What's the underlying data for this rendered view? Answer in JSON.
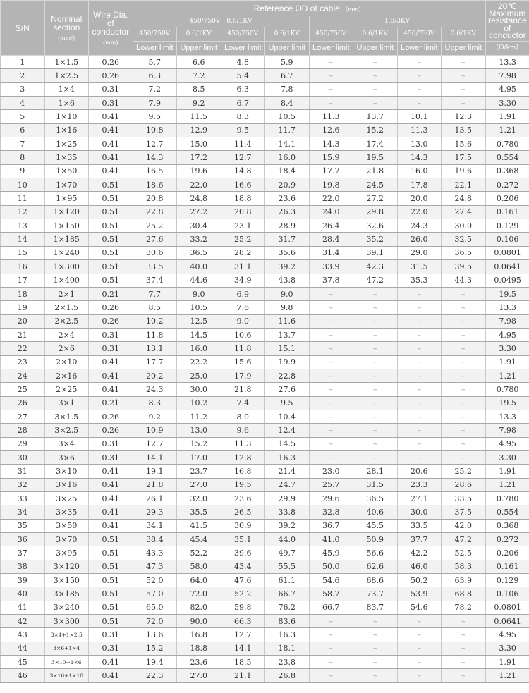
{
  "header": {
    "sn": "S/N",
    "nominal": "Nominal section",
    "nominal_unit": "（mm²）",
    "wire": "Wire Dia. of conductor",
    "wire_unit": "(mm)",
    "ref_od": "Reference OD of cable",
    "ref_od_unit": "（mm）",
    "group_a": "450/750V　0.6/1KV",
    "group_b": "1.8/3KV",
    "sub": [
      "450/750V",
      "0.6/1KV",
      "450/750V",
      "0.6/1KV",
      "450/750V",
      "0.6/1KV",
      "450/750V",
      "0.6/1KV"
    ],
    "limits": [
      "Lower limit",
      "Upper limit",
      "Lower limit",
      "Upper limit",
      "Lower limit",
      "Upper limit",
      "Lower limit",
      "Upper limit"
    ],
    "resistance": "20℃ Maximum resistance of conductor",
    "resistance_unit": "（Ω/km）"
  },
  "rows": [
    [
      "1",
      "1×1.5",
      "0.26",
      "5.7",
      "6.6",
      "4.8",
      "5.9",
      "–",
      "–",
      "–",
      "–",
      "13.3"
    ],
    [
      "2",
      "1×2.5",
      "0.26",
      "6.3",
      "7.2",
      "5.4",
      "6.7",
      "–",
      "–",
      "–",
      "–",
      "7.98"
    ],
    [
      "3",
      "1×4",
      "0.31",
      "7.2",
      "8.5",
      "6.3",
      "7.8",
      "–",
      "–",
      "–",
      "–",
      "4.95"
    ],
    [
      "4",
      "1×6",
      "0.31",
      "7.9",
      "9.2",
      "6.7",
      "8.4",
      "–",
      "–",
      "–",
      "–",
      "3.30"
    ],
    [
      "5",
      "1×10",
      "0.41",
      "9.5",
      "11.5",
      "8.3",
      "10.5",
      "11.3",
      "13.7",
      "10.1",
      "12.3",
      "1.91"
    ],
    [
      "6",
      "1×16",
      "0.41",
      "10.8",
      "12.9",
      "9.5",
      "11.7",
      "12.6",
      "15.2",
      "11.3",
      "13.5",
      "1.21"
    ],
    [
      "7",
      "1×25",
      "0.41",
      "12.7",
      "15.0",
      "11.4",
      "14.1",
      "14.3",
      "17.4",
      "13.0",
      "15.6",
      "0.780"
    ],
    [
      "8",
      "1×35",
      "0.41",
      "14.3",
      "17.2",
      "12.7",
      "16.0",
      "15.9",
      "19.5",
      "14.3",
      "17.5",
      "0.554"
    ],
    [
      "9",
      "1×50",
      "0.41",
      "16.5",
      "19.6",
      "14.8",
      "18.4",
      "17.7",
      "21.8",
      "16.0",
      "19.6",
      "0.368"
    ],
    [
      "10",
      "1×70",
      "0.51",
      "18.6",
      "22.0",
      "16.6",
      "20.9",
      "19.8",
      "24.5",
      "17.8",
      "22.1",
      "0.272"
    ],
    [
      "11",
      "1×95",
      "0.51",
      "20.8",
      "24.8",
      "18.8",
      "23.6",
      "22.0",
      "27.2",
      "20.0",
      "24.8",
      "0.206"
    ],
    [
      "12",
      "1×120",
      "0.51",
      "22.8",
      "27.2",
      "20.8",
      "26.3",
      "24.0",
      "29.8",
      "22.0",
      "27.4",
      "0.161"
    ],
    [
      "13",
      "1×150",
      "0.51",
      "25.2",
      "30.4",
      "23.1",
      "28.9",
      "26.4",
      "32.6",
      "24.3",
      "30.0",
      "0.129"
    ],
    [
      "14",
      "1×185",
      "0.51",
      "27.6",
      "33.2",
      "25.2",
      "31.7",
      "28.4",
      "35.2",
      "26.0",
      "32.5",
      "0.106"
    ],
    [
      "15",
      "1×240",
      "0.51",
      "30.6",
      "36.5",
      "28.2",
      "35.6",
      "31.4",
      "39.1",
      "29.0",
      "36.5",
      "0.0801"
    ],
    [
      "16",
      "1×300",
      "0.51",
      "33.5",
      "40.0",
      "31.1",
      "39.2",
      "33.9",
      "42.3",
      "31.5",
      "39.5",
      "0.0641"
    ],
    [
      "17",
      "1×400",
      "0.51",
      "37.4",
      "44.6",
      "34.9",
      "43.8",
      "37.8",
      "47.2",
      "35.3",
      "44.3",
      "0.0495"
    ],
    [
      "18",
      "2×1",
      "0.21",
      "7.7",
      "9.0",
      "6.9",
      "9.0",
      "–",
      "–",
      "–",
      "–",
      "19.5"
    ],
    [
      "19",
      "2×1.5",
      "0.26",
      "8.5",
      "10.5",
      "7.6",
      "9.8",
      "–",
      "–",
      "–",
      "–",
      "13.3"
    ],
    [
      "20",
      "2×2.5",
      "0.26",
      "10.2",
      "12.5",
      "9.0",
      "11.6",
      "–",
      "–",
      "–",
      "–",
      "7.98"
    ],
    [
      "21",
      "2×4",
      "0.31",
      "11.8",
      "14.5",
      "10.6",
      "13.7",
      "–",
      "–",
      "–",
      "–",
      "4.95"
    ],
    [
      "22",
      "2×6",
      "0.31",
      "13.1",
      "16.0",
      "11.8",
      "15.1",
      "–",
      "–",
      "–",
      "–",
      "3.30"
    ],
    [
      "23",
      "2×10",
      "0.41",
      "17.7",
      "22.2",
      "15.6",
      "19.9",
      "–",
      "–",
      "–",
      "–",
      "1.91"
    ],
    [
      "24",
      "2×16",
      "0.41",
      "20.2",
      "25.0",
      "17.9",
      "22.8",
      "–",
      "–",
      "–",
      "–",
      "1.21"
    ],
    [
      "25",
      "2×25",
      "0.41",
      "24.3",
      "30.0",
      "21.8",
      "27.6",
      "–",
      "–",
      "–",
      "–",
      "0.780"
    ],
    [
      "26",
      "3×1",
      "0.21",
      "8.3",
      "10.2",
      "7.4",
      "9.5",
      "–",
      "–",
      "–",
      "–",
      "19.5"
    ],
    [
      "27",
      "3×1.5",
      "0.26",
      "9.2",
      "11.2",
      "8.0",
      "10.4",
      "–",
      "–",
      "–",
      "–",
      "13.3"
    ],
    [
      "28",
      "3×2.5",
      "0.26",
      "10.9",
      "13.0",
      "9.6",
      "12.4",
      "–",
      "–",
      "–",
      "–",
      "7.98"
    ],
    [
      "29",
      "3×4",
      "0.31",
      "12.7",
      "15.2",
      "11.3",
      "14.5",
      "–",
      "–",
      "–",
      "–",
      "4.95"
    ],
    [
      "30",
      "3×6",
      "0.31",
      "14.1",
      "17.0",
      "12.8",
      "16.3",
      "–",
      "–",
      "–",
      "–",
      "3.30"
    ],
    [
      "31",
      "3×10",
      "0.41",
      "19.1",
      "23.7",
      "16.8",
      "21.4",
      "23.0",
      "28.1",
      "20.6",
      "25.2",
      "1.91"
    ],
    [
      "32",
      "3×16",
      "0.41",
      "21.8",
      "27.0",
      "19.5",
      "24.7",
      "25.7",
      "31.5",
      "23.3",
      "28.6",
      "1.21"
    ],
    [
      "33",
      "3×25",
      "0.41",
      "26.1",
      "32.0",
      "23.6",
      "29.9",
      "29.6",
      "36.5",
      "27.1",
      "33.5",
      "0.780"
    ],
    [
      "34",
      "3×35",
      "0.41",
      "29.3",
      "35.5",
      "26.5",
      "33.8",
      "32.8",
      "40.6",
      "30.0",
      "37.5",
      "0.554"
    ],
    [
      "35",
      "3×50",
      "0.41",
      "34.1",
      "41.5",
      "30.9",
      "39.2",
      "36.7",
      "45.5",
      "33.5",
      "42.0",
      "0.368"
    ],
    [
      "36",
      "3×70",
      "0.51",
      "38.4",
      "45.4",
      "35.1",
      "44.0",
      "41.0",
      "50.9",
      "37.7",
      "47.2",
      "0.272"
    ],
    [
      "37",
      "3×95",
      "0.51",
      "43.3",
      "52.2",
      "39.6",
      "49.7",
      "45.9",
      "56.6",
      "42.2",
      "52.5",
      "0.206"
    ],
    [
      "38",
      "3×120",
      "0.51",
      "47.3",
      "58.0",
      "43.4",
      "55.5",
      "50.0",
      "62.6",
      "46.0",
      "58.3",
      "0.161"
    ],
    [
      "39",
      "3×150",
      "0.51",
      "52.0",
      "64.0",
      "47.6",
      "61.1",
      "54.6",
      "68.6",
      "50.2",
      "63.9",
      "0.129"
    ],
    [
      "40",
      "3×185",
      "0.51",
      "57.0",
      "72.0",
      "52.2",
      "66.7",
      "58.7",
      "73.7",
      "53.9",
      "68.8",
      "0.106"
    ],
    [
      "41",
      "3×240",
      "0.51",
      "65.0",
      "82.0",
      "59.8",
      "76.2",
      "66.7",
      "83.7",
      "54.6",
      "78.2",
      "0.0801"
    ],
    [
      "42",
      "3×300",
      "0.51",
      "72.0",
      "90.0",
      "66.3",
      "83.6",
      "–",
      "–",
      "–",
      "–",
      "0.0641"
    ],
    [
      "43",
      "3×4+1×2.5",
      "0.31",
      "13.6",
      "16.8",
      "12.7",
      "16.3",
      "–",
      "–",
      "–",
      "–",
      "4.95"
    ],
    [
      "44",
      "3×6+1×4",
      "0.31",
      "15.2",
      "18.8",
      "14.1",
      "18.1",
      "–",
      "–",
      "–",
      "–",
      "3.30"
    ],
    [
      "45",
      "3×10+1×6",
      "0.41",
      "19.4",
      "23.6",
      "18.5",
      "23.8",
      "–",
      "–",
      "–",
      "–",
      "1.91"
    ],
    [
      "46",
      "3×16+1×10",
      "0.41",
      "22.3",
      "27.0",
      "21.1",
      "26.8",
      "–",
      "–",
      "–",
      "–",
      "1.21"
    ]
  ]
}
